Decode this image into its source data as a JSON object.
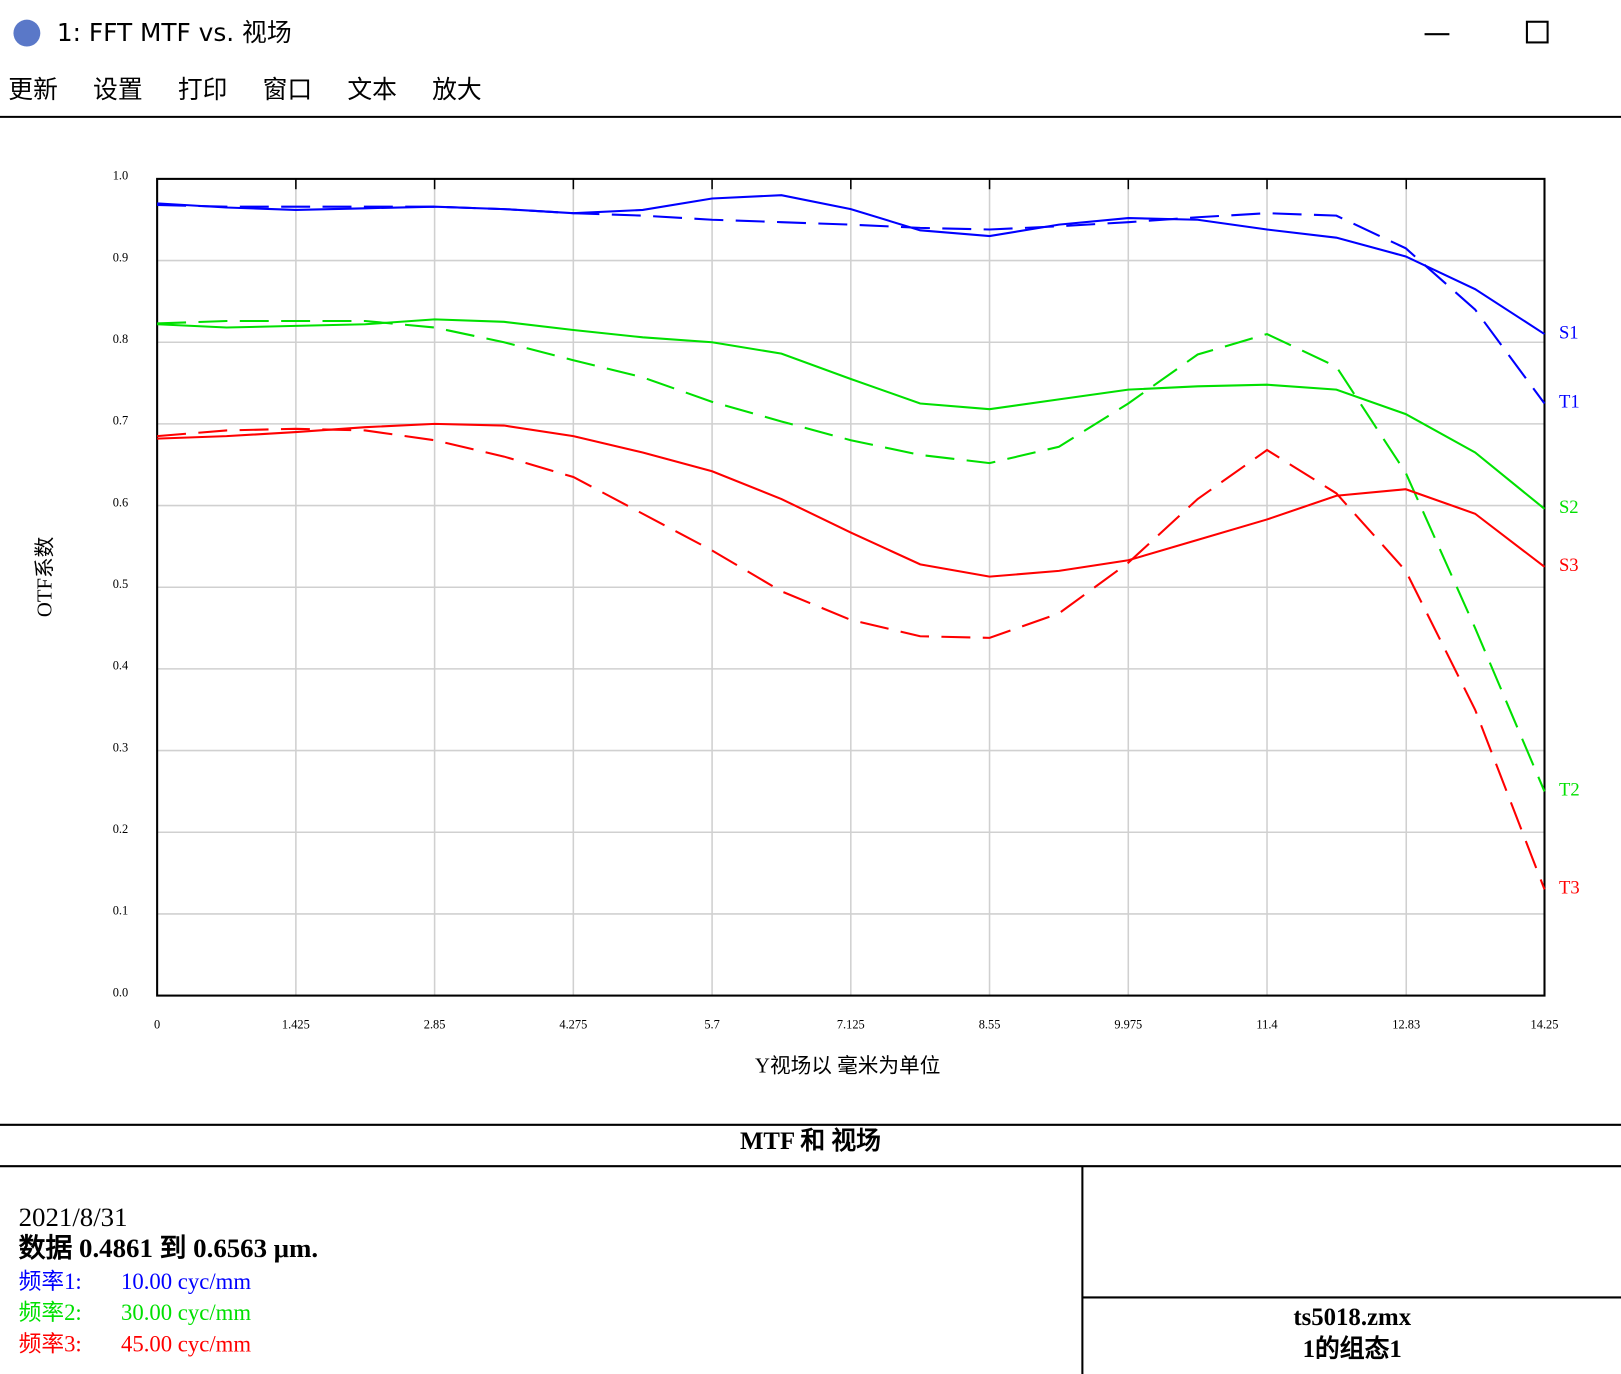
{
  "window": {
    "title": "1: FFT MTF vs. 视场",
    "menu": [
      "更新",
      "设置",
      "打印",
      "窗口",
      "文本",
      "放大"
    ]
  },
  "chart_data": {
    "type": "line",
    "y_label": "OTF系数",
    "x_label": "Y视场以 毫米为单位",
    "x": [
      0,
      0.7125,
      1.425,
      2.1375,
      2.85,
      3.5625,
      4.275,
      4.9875,
      5.7,
      6.4125,
      7.125,
      7.8375,
      8.55,
      9.2625,
      9.975,
      10.6875,
      11.4,
      12.1125,
      12.825,
      13.5375,
      14.25
    ],
    "series": [
      {
        "name": "S1",
        "color": "#0000ff",
        "style": "solid",
        "values": [
          0.97,
          0.965,
          0.962,
          0.964,
          0.966,
          0.963,
          0.958,
          0.962,
          0.976,
          0.98,
          0.963,
          0.937,
          0.93,
          0.944,
          0.952,
          0.95,
          0.938,
          0.928,
          0.905,
          0.865,
          0.81
        ]
      },
      {
        "name": "T1",
        "color": "#0000ff",
        "style": "dashed",
        "values": [
          0.968,
          0.966,
          0.966,
          0.966,
          0.966,
          0.963,
          0.958,
          0.955,
          0.95,
          0.947,
          0.944,
          0.94,
          0.938,
          0.942,
          0.947,
          0.953,
          0.958,
          0.955,
          0.915,
          0.84,
          0.725
        ]
      },
      {
        "name": "S2",
        "color": "#00e000",
        "style": "solid",
        "values": [
          0.822,
          0.818,
          0.82,
          0.822,
          0.828,
          0.825,
          0.815,
          0.806,
          0.8,
          0.786,
          0.755,
          0.725,
          0.718,
          0.73,
          0.742,
          0.746,
          0.748,
          0.742,
          0.712,
          0.665,
          0.596
        ]
      },
      {
        "name": "T2",
        "color": "#00e000",
        "style": "dashed",
        "values": [
          0.823,
          0.826,
          0.826,
          0.826,
          0.818,
          0.8,
          0.778,
          0.757,
          0.727,
          0.703,
          0.68,
          0.662,
          0.652,
          0.672,
          0.725,
          0.785,
          0.81,
          0.77,
          0.64,
          0.45,
          0.25
        ]
      },
      {
        "name": "S3",
        "color": "#ff0000",
        "style": "solid",
        "values": [
          0.682,
          0.685,
          0.69,
          0.696,
          0.7,
          0.698,
          0.685,
          0.665,
          0.642,
          0.608,
          0.567,
          0.528,
          0.513,
          0.52,
          0.533,
          0.558,
          0.583,
          0.612,
          0.62,
          0.59,
          0.525
        ]
      },
      {
        "name": "T3",
        "color": "#ff0000",
        "style": "dashed",
        "values": [
          0.685,
          0.692,
          0.694,
          0.692,
          0.68,
          0.66,
          0.635,
          0.59,
          0.545,
          0.495,
          0.46,
          0.44,
          0.438,
          0.468,
          0.53,
          0.608,
          0.668,
          0.615,
          0.52,
          0.35,
          0.13
        ]
      }
    ],
    "xlim": [
      0,
      14.25
    ],
    "xticks": [
      0,
      1.425,
      2.85,
      4.275,
      5.7,
      7.125,
      8.55,
      9.975,
      11.4,
      12.83,
      14.25
    ],
    "ylim": [
      0,
      1
    ],
    "yticks": [
      {
        "value": 0,
        "label": "0.0"
      },
      0.1,
      0.2,
      0.3,
      0.4,
      0.5,
      0.6,
      0.7,
      0.8,
      0.9,
      {
        "value": 1,
        "label": "1.0"
      }
    ],
    "grid": true
  },
  "footer": {
    "title": "MTF 和 视场",
    "date": "2021/8/31",
    "data_range": "数据 0.4861 到 0.6563 μm.",
    "frequencies": [
      {
        "label": "频率1:",
        "value": "10.00 cyc/mm",
        "color": "#0000ff"
      },
      {
        "label": "频率2:",
        "value": "30.00 cyc/mm",
        "color": "#00e000"
      },
      {
        "label": "频率3:",
        "value": "45.00 cyc/mm",
        "color": "#ff0000"
      }
    ],
    "file": "ts5018.zmx",
    "config": "1的组态1"
  }
}
